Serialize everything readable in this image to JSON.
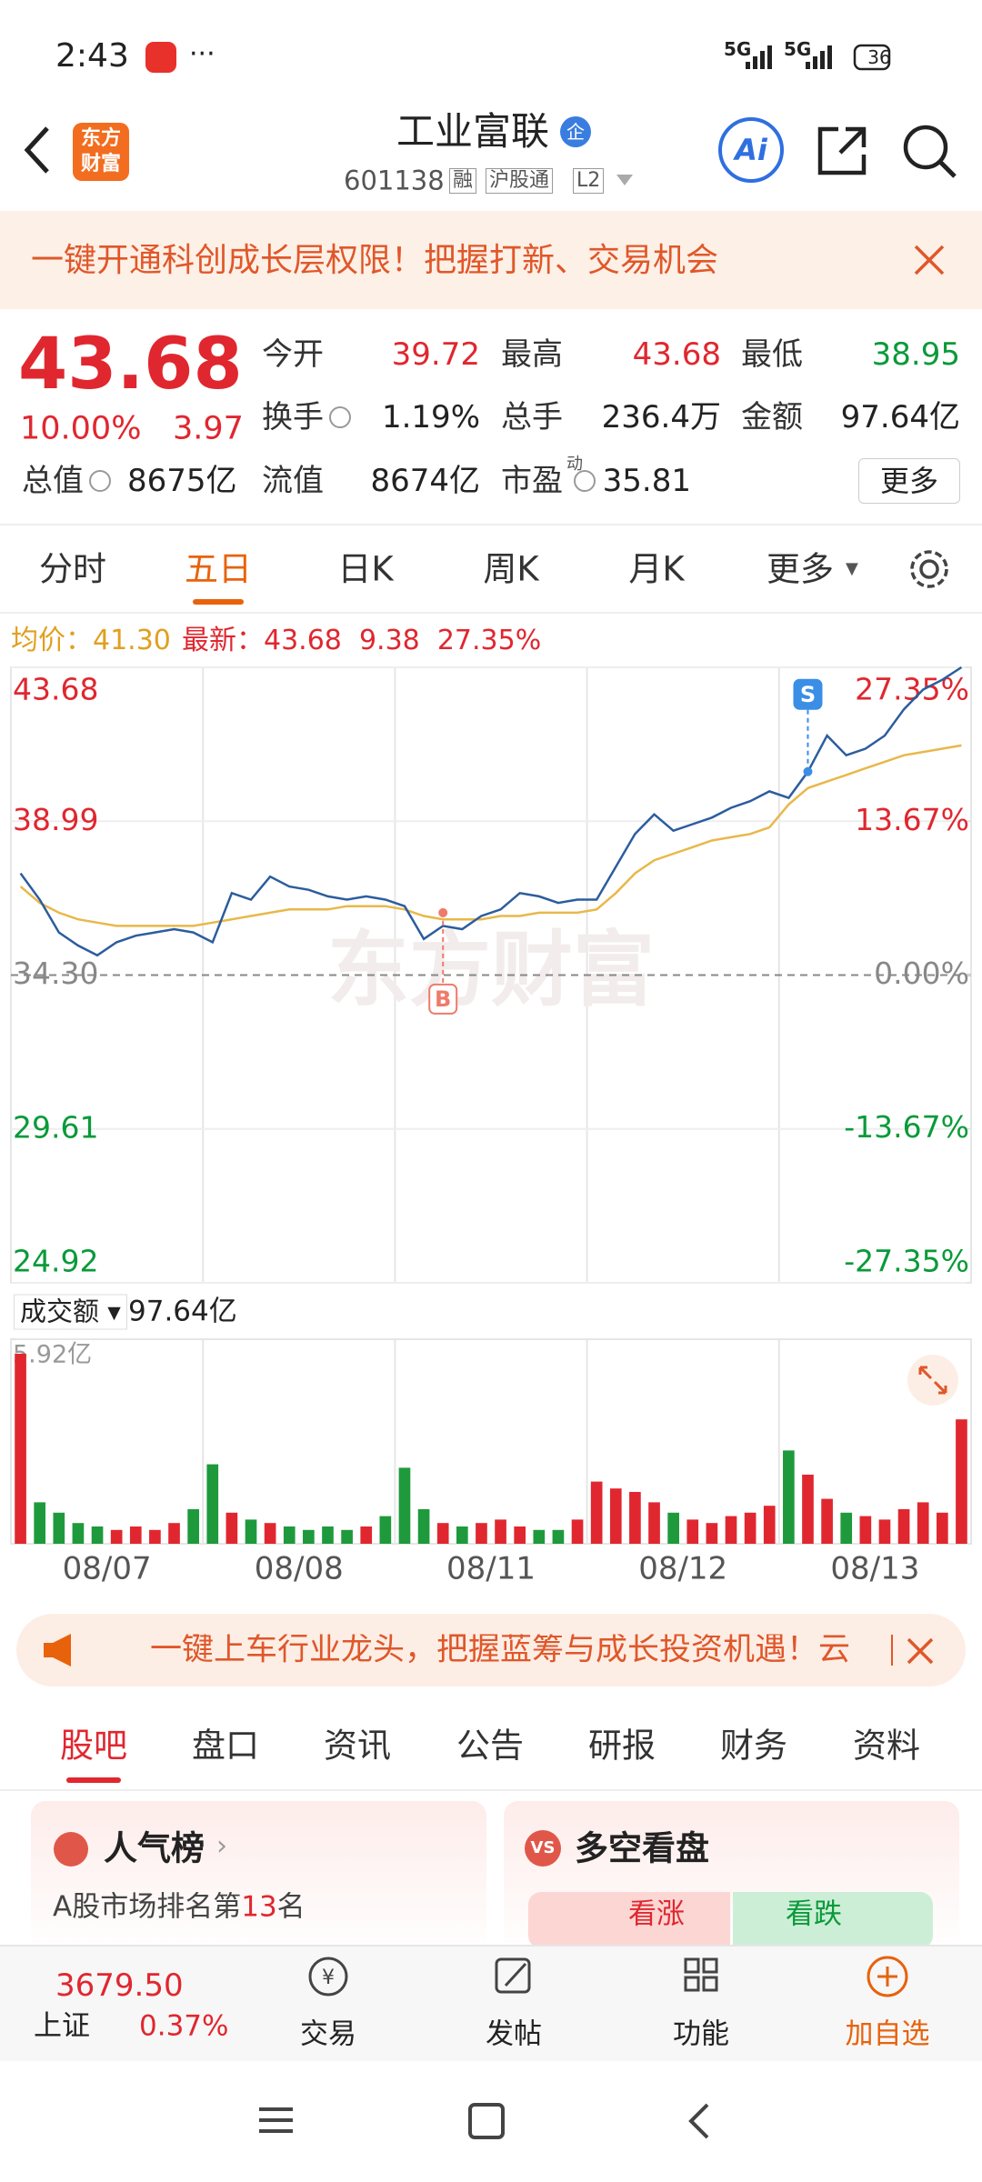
{
  "status_bar": {
    "time": "2:43",
    "network": [
      "5G",
      "5G"
    ],
    "battery": "36"
  },
  "header": {
    "logo": [
      "东方",
      "财富"
    ],
    "title": "工业富联",
    "title_badge": "企",
    "code": "601138",
    "tags": [
      "融",
      "沪股通",
      "L2"
    ],
    "ai": "Ai"
  },
  "banner_top": {
    "text": "一键开通科创成长层权限！把握打新、交易机会"
  },
  "quote": {
    "price": "43.68",
    "change_pct": "10.00%",
    "change": "3.97",
    "stats": [
      {
        "label": "今开",
        "value": "39.72",
        "color": "#e0272f"
      },
      {
        "label": "最高",
        "value": "43.68",
        "color": "#e0272f"
      },
      {
        "label": "最低",
        "value": "38.95",
        "color": "#0a9a3a"
      },
      {
        "label": "换手",
        "value": "1.19%",
        "info": true
      },
      {
        "label": "总手",
        "value": "236.4万"
      },
      {
        "label": "金额",
        "value": "97.64亿"
      },
      {
        "label": "总值",
        "value": "8675亿",
        "info": true
      },
      {
        "label": "流值",
        "value": "8674亿"
      },
      {
        "label": "市盈",
        "sup": "动",
        "value": "35.81",
        "info": true
      }
    ],
    "more": "更多"
  },
  "period_tabs": {
    "items": [
      "分时",
      "五日",
      "日K",
      "周K",
      "月K",
      "更多"
    ],
    "active": 1
  },
  "info_line": {
    "avg_label": "均价：",
    "avg": "41.30",
    "last_label": "最新：",
    "last": "43.68",
    "change": "9.38",
    "change_pct": "27.35%"
  },
  "chart_data": [
    {
      "type": "line",
      "days": [
        "08/07",
        "08/08",
        "08/11",
        "08/12",
        "08/13"
      ],
      "watermark": "东方财富",
      "ylim": [
        24.92,
        43.68
      ],
      "yticks": [
        43.68,
        38.99,
        {
          "value": 34.3,
          "label": "34.30"
        },
        29.61,
        24.92
      ],
      "y2lim": [
        -27.35,
        27.35
      ],
      "y2ticks": [
        {
          "value": 27.35,
          "label": "27.35%"
        },
        {
          "value": 13.67,
          "label": "13.67%"
        },
        {
          "value": 0,
          "label": "0.00%"
        },
        {
          "value": -13.67,
          "label": "-13.67%"
        },
        {
          "value": -27.35,
          "label": "-27.35%"
        }
      ],
      "grid": true,
      "series": [
        {
          "color": "#2c5d9e",
          "values": [
            37.4,
            36.6,
            35.6,
            35.2,
            34.9,
            35.3,
            35.5,
            35.6,
            35.7,
            35.6,
            35.3,
            36.8,
            36.6,
            37.3,
            37.0,
            36.9,
            36.7,
            36.6,
            36.7,
            36.6,
            36.4,
            35.4,
            35.8,
            35.7,
            36.1,
            36.3,
            36.8,
            36.7,
            36.5,
            36.6,
            36.6,
            37.6,
            38.6,
            39.2,
            38.7,
            38.9,
            39.1,
            39.4,
            39.6,
            39.9,
            39.7,
            40.5,
            41.6,
            41.0,
            41.2,
            41.6,
            42.4,
            43.0,
            43.3,
            43.68
          ]
        },
        {
          "color": "#e8b84a",
          "values": [
            37.0,
            36.5,
            36.2,
            36.0,
            35.9,
            35.8,
            35.8,
            35.8,
            35.8,
            35.8,
            35.9,
            36.0,
            36.1,
            36.2,
            36.3,
            36.3,
            36.3,
            36.4,
            36.4,
            36.4,
            36.3,
            36.1,
            36.0,
            36.0,
            36.0,
            36.1,
            36.1,
            36.2,
            36.2,
            36.2,
            36.3,
            36.8,
            37.4,
            37.8,
            38.0,
            38.2,
            38.4,
            38.5,
            38.6,
            38.8,
            39.5,
            40.0,
            40.2,
            40.4,
            40.6,
            40.8,
            41.0,
            41.1,
            41.2,
            41.3
          ]
        }
      ],
      "annotations": [
        {
          "text": "B",
          "at": 22,
          "value": 36.2,
          "color": "#f07a6a"
        },
        {
          "text": "S",
          "at": 41,
          "value": 40.5,
          "color": "#3a8ee6"
        }
      ]
    },
    {
      "type": "bar",
      "label": "成交额",
      "total": "97.64亿",
      "ylim": [
        0,
        5.92
      ],
      "yticks": [
        {
          "value": 5.92,
          "label": "5.92亿"
        }
      ],
      "up_color": "#e0272f",
      "down_color": "#1e9a3c",
      "values": [
        5.5,
        1.2,
        0.9,
        0.6,
        0.5,
        0.4,
        0.5,
        0.4,
        0.6,
        1.0,
        2.3,
        0.9,
        0.7,
        0.6,
        0.5,
        0.4,
        0.5,
        0.4,
        0.5,
        0.8,
        2.2,
        1.0,
        0.6,
        0.5,
        0.6,
        0.7,
        0.5,
        0.4,
        0.4,
        0.7,
        1.8,
        1.6,
        1.5,
        1.2,
        0.9,
        0.7,
        0.6,
        0.8,
        0.9,
        1.1,
        2.7,
        2.0,
        1.3,
        0.9,
        0.8,
        0.7,
        1.0,
        1.2,
        0.9,
        3.6
      ]
    }
  ],
  "banner_ad": {
    "text": "一键上车行业龙头，把握蓝筹与成长投资机遇！云"
  },
  "content_tabs": {
    "items": [
      "股吧",
      "盘口",
      "资讯",
      "公告",
      "研报",
      "财务",
      "资料"
    ],
    "active": 0
  },
  "cards": {
    "popularity": {
      "title": "人气榜",
      "prefix": "A股市场排名第",
      "rank": "13",
      "suffix": "名"
    },
    "sentiment": {
      "badge": "VS",
      "title": "多空看盘",
      "bull": "看涨",
      "bear": "看跌"
    }
  },
  "bottom_bar": {
    "index_value": "3679.50",
    "index_name": "上证",
    "index_change": "0.37%",
    "items": [
      "交易",
      "发帖",
      "功能",
      "加自选"
    ]
  }
}
